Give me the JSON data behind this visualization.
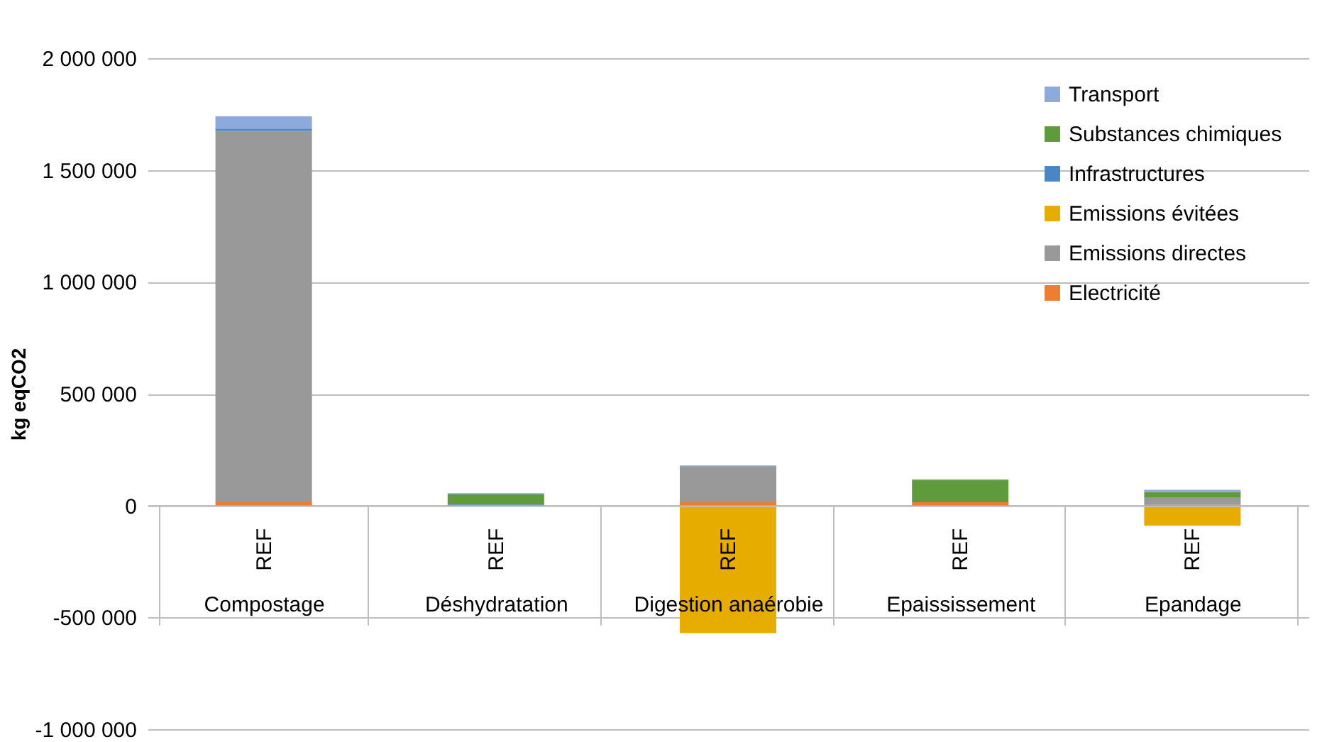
{
  "chart_data": {
    "type": "bar",
    "stacked": true,
    "ylabel": "kg eqCO2",
    "categories": [
      "Compostage",
      "Déshydratation",
      "Digestion anaérobie",
      "Epaississement",
      "Epandage"
    ],
    "series": [
      {
        "name": "Electricité",
        "color": "#ed7d31",
        "values": [
          15000,
          3000,
          15000,
          15000,
          3000
        ]
      },
      {
        "name": "Emissions directes",
        "color": "#999999",
        "values": [
          1660000,
          0,
          160000,
          0,
          32000
        ]
      },
      {
        "name": "Emissions évitées",
        "color": "#e6ac00",
        "values": [
          0,
          0,
          -570000,
          0,
          -90000
        ]
      },
      {
        "name": "Infrastructures",
        "color": "#4a86c5",
        "values": [
          10000,
          2000,
          3000,
          0,
          2000
        ]
      },
      {
        "name": "Substances chimiques",
        "color": "#5f9a3c",
        "values": [
          0,
          45000,
          0,
          100000,
          23000
        ]
      },
      {
        "name": "Transport",
        "color": "#8ea9db",
        "values": [
          55000,
          5000,
          2000,
          3000,
          10000
        ]
      }
    ],
    "annotations": [
      "REF",
      "REF",
      "REF",
      "REF",
      "REF"
    ],
    "ylim": [
      -1000000,
      2000000
    ],
    "yticks": [
      {
        "value": -1000000,
        "label": "-1 000 000"
      },
      {
        "value": -500000,
        "label": "-500 000"
      },
      {
        "value": 0,
        "label": "0"
      },
      {
        "value": 500000,
        "label": "500 000"
      },
      {
        "value": 1000000,
        "label": "1 000 000"
      },
      {
        "value": 1500000,
        "label": "1 500 000"
      },
      {
        "value": 2000000,
        "label": "2 000 000"
      }
    ],
    "grid": "y",
    "legend": "top right"
  }
}
